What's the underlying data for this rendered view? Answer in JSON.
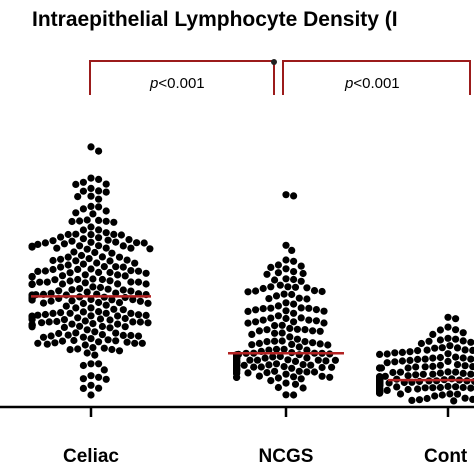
{
  "chart_data": {
    "type": "scatter",
    "subtype": "beeswarm",
    "title": "Intraepithelial Lymphocyte Density (I",
    "categories": [
      "Celiac",
      "NCGS",
      "Cont"
    ],
    "comparisons": [
      {
        "from": "Celiac",
        "to": "NCGS",
        "p_prefix": "p",
        "p_rest": "<0.001"
      },
      {
        "from": "NCGS",
        "to": "Cont",
        "p_prefix": "p",
        "p_rest": "<0.001"
      }
    ],
    "series": [
      {
        "name": "Celiac",
        "median": 37,
        "min": 4,
        "max": 87,
        "n": 260
      },
      {
        "name": "NCGS",
        "median": 18,
        "min": 4,
        "max": 71,
        "n": 200
      },
      {
        "name": "Cont",
        "median": 9,
        "min": 2,
        "max": 30,
        "n": 230
      }
    ],
    "ylim": [
      0,
      95
    ],
    "colors": {
      "point": "#000000",
      "median": "#b22222",
      "bracket": "#9b1b1b",
      "axis": "#000000"
    }
  }
}
